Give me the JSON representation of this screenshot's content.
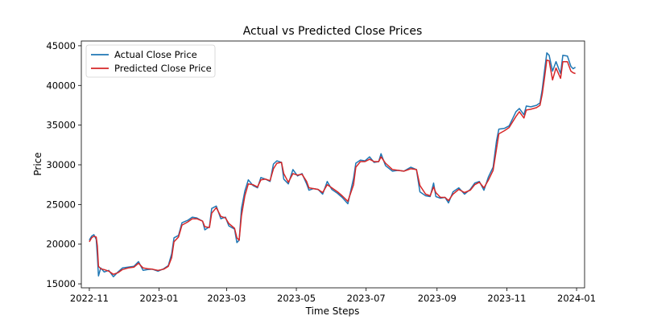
{
  "chart_data": {
    "type": "line",
    "title": "Actual vs Predicted Close Prices",
    "xlabel": "Time Steps",
    "ylabel": "Price",
    "xlim": [
      "2022-10-25",
      "2024-01-08"
    ],
    "ylim": [
      14500,
      45600
    ],
    "x_ticks": [
      "2022-11",
      "2023-01",
      "2023-03",
      "2023-05",
      "2023-07",
      "2023-09",
      "2023-11",
      "2024-01"
    ],
    "y_ticks": [
      15000,
      20000,
      25000,
      30000,
      35000,
      40000,
      45000
    ],
    "grid": false,
    "legend": "upper-left",
    "series": [
      {
        "name": "Actual Close Price",
        "color": "#1f77b4",
        "points": [
          [
            "2022-11-01",
            20500
          ],
          [
            "2022-11-03",
            21000
          ],
          [
            "2022-11-05",
            21200
          ],
          [
            "2022-11-07",
            20600
          ],
          [
            "2022-11-08",
            18500
          ],
          [
            "2022-11-09",
            16000
          ],
          [
            "2022-11-11",
            17000
          ],
          [
            "2022-11-14",
            16500
          ],
          [
            "2022-11-18",
            16700
          ],
          [
            "2022-11-22",
            15900
          ],
          [
            "2022-11-26",
            16500
          ],
          [
            "2022-11-30",
            17000
          ],
          [
            "2022-12-05",
            17100
          ],
          [
            "2022-12-10",
            17200
          ],
          [
            "2022-12-14",
            17800
          ],
          [
            "2022-12-18",
            16700
          ],
          [
            "2022-12-22",
            16800
          ],
          [
            "2022-12-26",
            16850
          ],
          [
            "2022-12-31",
            16600
          ],
          [
            "2023-01-05",
            16900
          ],
          [
            "2023-01-09",
            17300
          ],
          [
            "2023-01-12",
            18800
          ],
          [
            "2023-01-14",
            20800
          ],
          [
            "2023-01-18",
            21100
          ],
          [
            "2023-01-21",
            22700
          ],
          [
            "2023-01-26",
            23000
          ],
          [
            "2023-01-30",
            23400
          ],
          [
            "2023-02-03",
            23300
          ],
          [
            "2023-02-08",
            22900
          ],
          [
            "2023-02-10",
            21800
          ],
          [
            "2023-02-14",
            22200
          ],
          [
            "2023-02-16",
            24500
          ],
          [
            "2023-02-20",
            24800
          ],
          [
            "2023-02-24",
            23200
          ],
          [
            "2023-02-28",
            23400
          ],
          [
            "2023-03-03",
            22300
          ],
          [
            "2023-03-08",
            21900
          ],
          [
            "2023-03-10",
            20200
          ],
          [
            "2023-03-12",
            20500
          ],
          [
            "2023-03-14",
            24500
          ],
          [
            "2023-03-17",
            26700
          ],
          [
            "2023-03-20",
            28100
          ],
          [
            "2023-03-24",
            27400
          ],
          [
            "2023-03-28",
            27100
          ],
          [
            "2023-03-31",
            28400
          ],
          [
            "2023-04-04",
            28200
          ],
          [
            "2023-04-08",
            27900
          ],
          [
            "2023-04-11",
            30100
          ],
          [
            "2023-04-14",
            30500
          ],
          [
            "2023-04-18",
            30300
          ],
          [
            "2023-04-20",
            28200
          ],
          [
            "2023-04-24",
            27600
          ],
          [
            "2023-04-28",
            29400
          ],
          [
            "2023-05-02",
            28600
          ],
          [
            "2023-05-06",
            28900
          ],
          [
            "2023-05-10",
            27600
          ],
          [
            "2023-05-12",
            26800
          ],
          [
            "2023-05-16",
            27000
          ],
          [
            "2023-05-20",
            26900
          ],
          [
            "2023-05-24",
            26300
          ],
          [
            "2023-05-28",
            27900
          ],
          [
            "2023-06-01",
            26900
          ],
          [
            "2023-06-06",
            26400
          ],
          [
            "2023-06-10",
            25900
          ],
          [
            "2023-06-15",
            25100
          ],
          [
            "2023-06-20",
            28300
          ],
          [
            "2023-06-22",
            30200
          ],
          [
            "2023-06-26",
            30600
          ],
          [
            "2023-06-30",
            30500
          ],
          [
            "2023-07-04",
            31000
          ],
          [
            "2023-07-08",
            30300
          ],
          [
            "2023-07-12",
            30400
          ],
          [
            "2023-07-14",
            31400
          ],
          [
            "2023-07-18",
            29900
          ],
          [
            "2023-07-24",
            29200
          ],
          [
            "2023-07-29",
            29300
          ],
          [
            "2023-08-03",
            29200
          ],
          [
            "2023-08-09",
            29700
          ],
          [
            "2023-08-14",
            29400
          ],
          [
            "2023-08-17",
            26600
          ],
          [
            "2023-08-22",
            26100
          ],
          [
            "2023-08-26",
            26000
          ],
          [
            "2023-08-29",
            27700
          ],
          [
            "2023-08-31",
            26000
          ],
          [
            "2023-09-04",
            25800
          ],
          [
            "2023-09-08",
            25900
          ],
          [
            "2023-09-11",
            25200
          ],
          [
            "2023-09-15",
            26600
          ],
          [
            "2023-09-20",
            27100
          ],
          [
            "2023-09-25",
            26300
          ],
          [
            "2023-09-30",
            26900
          ],
          [
            "2023-10-04",
            27700
          ],
          [
            "2023-10-08",
            27900
          ],
          [
            "2023-10-12",
            26800
          ],
          [
            "2023-10-16",
            28500
          ],
          [
            "2023-10-20",
            29700
          ],
          [
            "2023-10-23",
            33000
          ],
          [
            "2023-10-25",
            34500
          ],
          [
            "2023-10-30",
            34600
          ],
          [
            "2023-11-03",
            34900
          ],
          [
            "2023-11-09",
            36700
          ],
          [
            "2023-11-12",
            37100
          ],
          [
            "2023-11-16",
            36300
          ],
          [
            "2023-11-18",
            37400
          ],
          [
            "2023-11-22",
            37300
          ],
          [
            "2023-11-27",
            37500
          ],
          [
            "2023-11-30",
            37800
          ],
          [
            "2023-12-02",
            39500
          ],
          [
            "2023-12-04",
            41900
          ],
          [
            "2023-12-06",
            44100
          ],
          [
            "2023-12-08",
            43800
          ],
          [
            "2023-12-11",
            41800
          ],
          [
            "2023-12-14",
            43000
          ],
          [
            "2023-12-18",
            41500
          ],
          [
            "2023-12-20",
            43800
          ],
          [
            "2023-12-24",
            43700
          ],
          [
            "2023-12-27",
            42400
          ],
          [
            "2023-12-29",
            42100
          ],
          [
            "2023-12-31",
            42300
          ]
        ]
      },
      {
        "name": "Predicted Close Price",
        "color": "#d62728",
        "points": [
          [
            "2022-11-01",
            20300
          ],
          [
            "2022-11-03",
            20800
          ],
          [
            "2022-11-05",
            21000
          ],
          [
            "2022-11-07",
            20900
          ],
          [
            "2022-11-08",
            19800
          ],
          [
            "2022-11-09",
            17200
          ],
          [
            "2022-11-11",
            16900
          ],
          [
            "2022-11-14",
            16800
          ],
          [
            "2022-11-18",
            16600
          ],
          [
            "2022-11-22",
            16200
          ],
          [
            "2022-11-26",
            16400
          ],
          [
            "2022-11-30",
            16800
          ],
          [
            "2022-12-05",
            17000
          ],
          [
            "2022-12-10",
            17100
          ],
          [
            "2022-12-14",
            17600
          ],
          [
            "2022-12-18",
            17000
          ],
          [
            "2022-12-22",
            16900
          ],
          [
            "2022-12-26",
            16850
          ],
          [
            "2022-12-31",
            16700
          ],
          [
            "2023-01-05",
            16850
          ],
          [
            "2023-01-09",
            17200
          ],
          [
            "2023-01-12",
            18300
          ],
          [
            "2023-01-14",
            20300
          ],
          [
            "2023-01-18",
            20900
          ],
          [
            "2023-01-21",
            22400
          ],
          [
            "2023-01-26",
            22800
          ],
          [
            "2023-01-30",
            23200
          ],
          [
            "2023-02-03",
            23200
          ],
          [
            "2023-02-08",
            22900
          ],
          [
            "2023-02-10",
            22200
          ],
          [
            "2023-02-14",
            22100
          ],
          [
            "2023-02-16",
            23900
          ],
          [
            "2023-02-20",
            24600
          ],
          [
            "2023-02-24",
            23500
          ],
          [
            "2023-02-28",
            23300
          ],
          [
            "2023-03-03",
            22600
          ],
          [
            "2023-03-08",
            22000
          ],
          [
            "2023-03-10",
            20800
          ],
          [
            "2023-03-12",
            20500
          ],
          [
            "2023-03-14",
            23600
          ],
          [
            "2023-03-17",
            26100
          ],
          [
            "2023-03-20",
            27600
          ],
          [
            "2023-03-24",
            27500
          ],
          [
            "2023-03-28",
            27200
          ],
          [
            "2023-03-31",
            28100
          ],
          [
            "2023-04-04",
            28200
          ],
          [
            "2023-04-08",
            28000
          ],
          [
            "2023-04-11",
            29500
          ],
          [
            "2023-04-14",
            30200
          ],
          [
            "2023-04-18",
            30300
          ],
          [
            "2023-04-20",
            28900
          ],
          [
            "2023-04-24",
            27800
          ],
          [
            "2023-04-28",
            28900
          ],
          [
            "2023-05-02",
            28700
          ],
          [
            "2023-05-06",
            28800
          ],
          [
            "2023-05-10",
            27900
          ],
          [
            "2023-05-12",
            27100
          ],
          [
            "2023-05-16",
            27000
          ],
          [
            "2023-05-20",
            26900
          ],
          [
            "2023-05-24",
            26500
          ],
          [
            "2023-05-28",
            27500
          ],
          [
            "2023-06-01",
            27100
          ],
          [
            "2023-06-06",
            26600
          ],
          [
            "2023-06-10",
            26100
          ],
          [
            "2023-06-15",
            25400
          ],
          [
            "2023-06-20",
            27500
          ],
          [
            "2023-06-22",
            29700
          ],
          [
            "2023-06-26",
            30400
          ],
          [
            "2023-06-30",
            30400
          ],
          [
            "2023-07-04",
            30700
          ],
          [
            "2023-07-08",
            30400
          ],
          [
            "2023-07-12",
            30400
          ],
          [
            "2023-07-14",
            31000
          ],
          [
            "2023-07-18",
            30200
          ],
          [
            "2023-07-24",
            29400
          ],
          [
            "2023-07-29",
            29300
          ],
          [
            "2023-08-03",
            29200
          ],
          [
            "2023-08-09",
            29500
          ],
          [
            "2023-08-14",
            29400
          ],
          [
            "2023-08-17",
            27400
          ],
          [
            "2023-08-22",
            26300
          ],
          [
            "2023-08-26",
            26100
          ],
          [
            "2023-08-29",
            27200
          ],
          [
            "2023-08-31",
            26500
          ],
          [
            "2023-09-04",
            25900
          ],
          [
            "2023-09-08",
            25900
          ],
          [
            "2023-09-11",
            25500
          ],
          [
            "2023-09-15",
            26300
          ],
          [
            "2023-09-20",
            26900
          ],
          [
            "2023-09-25",
            26500
          ],
          [
            "2023-09-30",
            26800
          ],
          [
            "2023-10-04",
            27500
          ],
          [
            "2023-10-08",
            27800
          ],
          [
            "2023-10-12",
            27100
          ],
          [
            "2023-10-16",
            28100
          ],
          [
            "2023-10-20",
            29300
          ],
          [
            "2023-10-23",
            32000
          ],
          [
            "2023-10-25",
            33900
          ],
          [
            "2023-10-30",
            34300
          ],
          [
            "2023-11-03",
            34700
          ],
          [
            "2023-11-09",
            36100
          ],
          [
            "2023-11-12",
            36700
          ],
          [
            "2023-11-16",
            35900
          ],
          [
            "2023-11-18",
            36900
          ],
          [
            "2023-11-22",
            37000
          ],
          [
            "2023-11-27",
            37200
          ],
          [
            "2023-11-30",
            37500
          ],
          [
            "2023-12-02",
            38900
          ],
          [
            "2023-12-04",
            41000
          ],
          [
            "2023-12-06",
            43200
          ],
          [
            "2023-12-08",
            43100
          ],
          [
            "2023-12-11",
            40700
          ],
          [
            "2023-12-14",
            42200
          ],
          [
            "2023-12-18",
            40900
          ],
          [
            "2023-12-20",
            43000
          ],
          [
            "2023-12-24",
            43000
          ],
          [
            "2023-12-27",
            41800
          ],
          [
            "2023-12-29",
            41600
          ],
          [
            "2023-12-31",
            41500
          ]
        ]
      }
    ]
  }
}
